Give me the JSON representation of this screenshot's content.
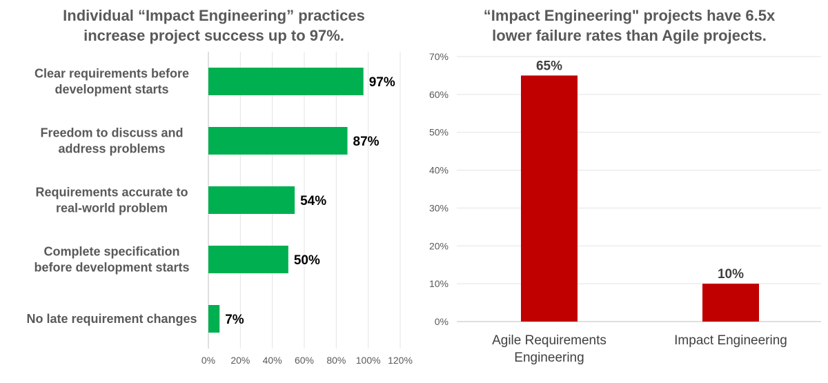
{
  "chart_data": [
    {
      "type": "bar",
      "orientation": "horizontal",
      "title_lines": [
        "Individual “Impact Engineering” practices",
        "increase project success up to 97%."
      ],
      "categories": [
        [
          "Clear requirements before",
          "development starts"
        ],
        [
          "Freedom to discuss and",
          "address problems"
        ],
        [
          "Requirements accurate to",
          "real-world problem"
        ],
        [
          "Complete specification",
          "before development starts"
        ],
        [
          "No late requirement changes"
        ]
      ],
      "values": [
        97,
        87,
        54,
        50,
        7
      ],
      "value_labels": [
        "97%",
        "87%",
        "54%",
        "50%",
        "7%"
      ],
      "xlim": [
        0,
        120
      ],
      "x_ticks": [
        "0%",
        "20%",
        "40%",
        "60%",
        "80%",
        "100%",
        "120%"
      ],
      "color": "#00B050",
      "grid": true
    },
    {
      "type": "bar",
      "orientation": "vertical",
      "title_lines": [
        "“Impact Engineering\" projects have 6.5x",
        "lower failure rates than Agile projects."
      ],
      "categories": [
        [
          "Agile Requirements",
          "Engineering"
        ],
        [
          "Impact Engineering"
        ]
      ],
      "values": [
        65,
        10
      ],
      "value_labels": [
        "65%",
        "10%"
      ],
      "ylim": [
        0,
        70
      ],
      "y_ticks": [
        "0%",
        "10%",
        "20%",
        "30%",
        "40%",
        "50%",
        "60%",
        "70%"
      ],
      "color": "#C00000",
      "grid": true
    }
  ]
}
